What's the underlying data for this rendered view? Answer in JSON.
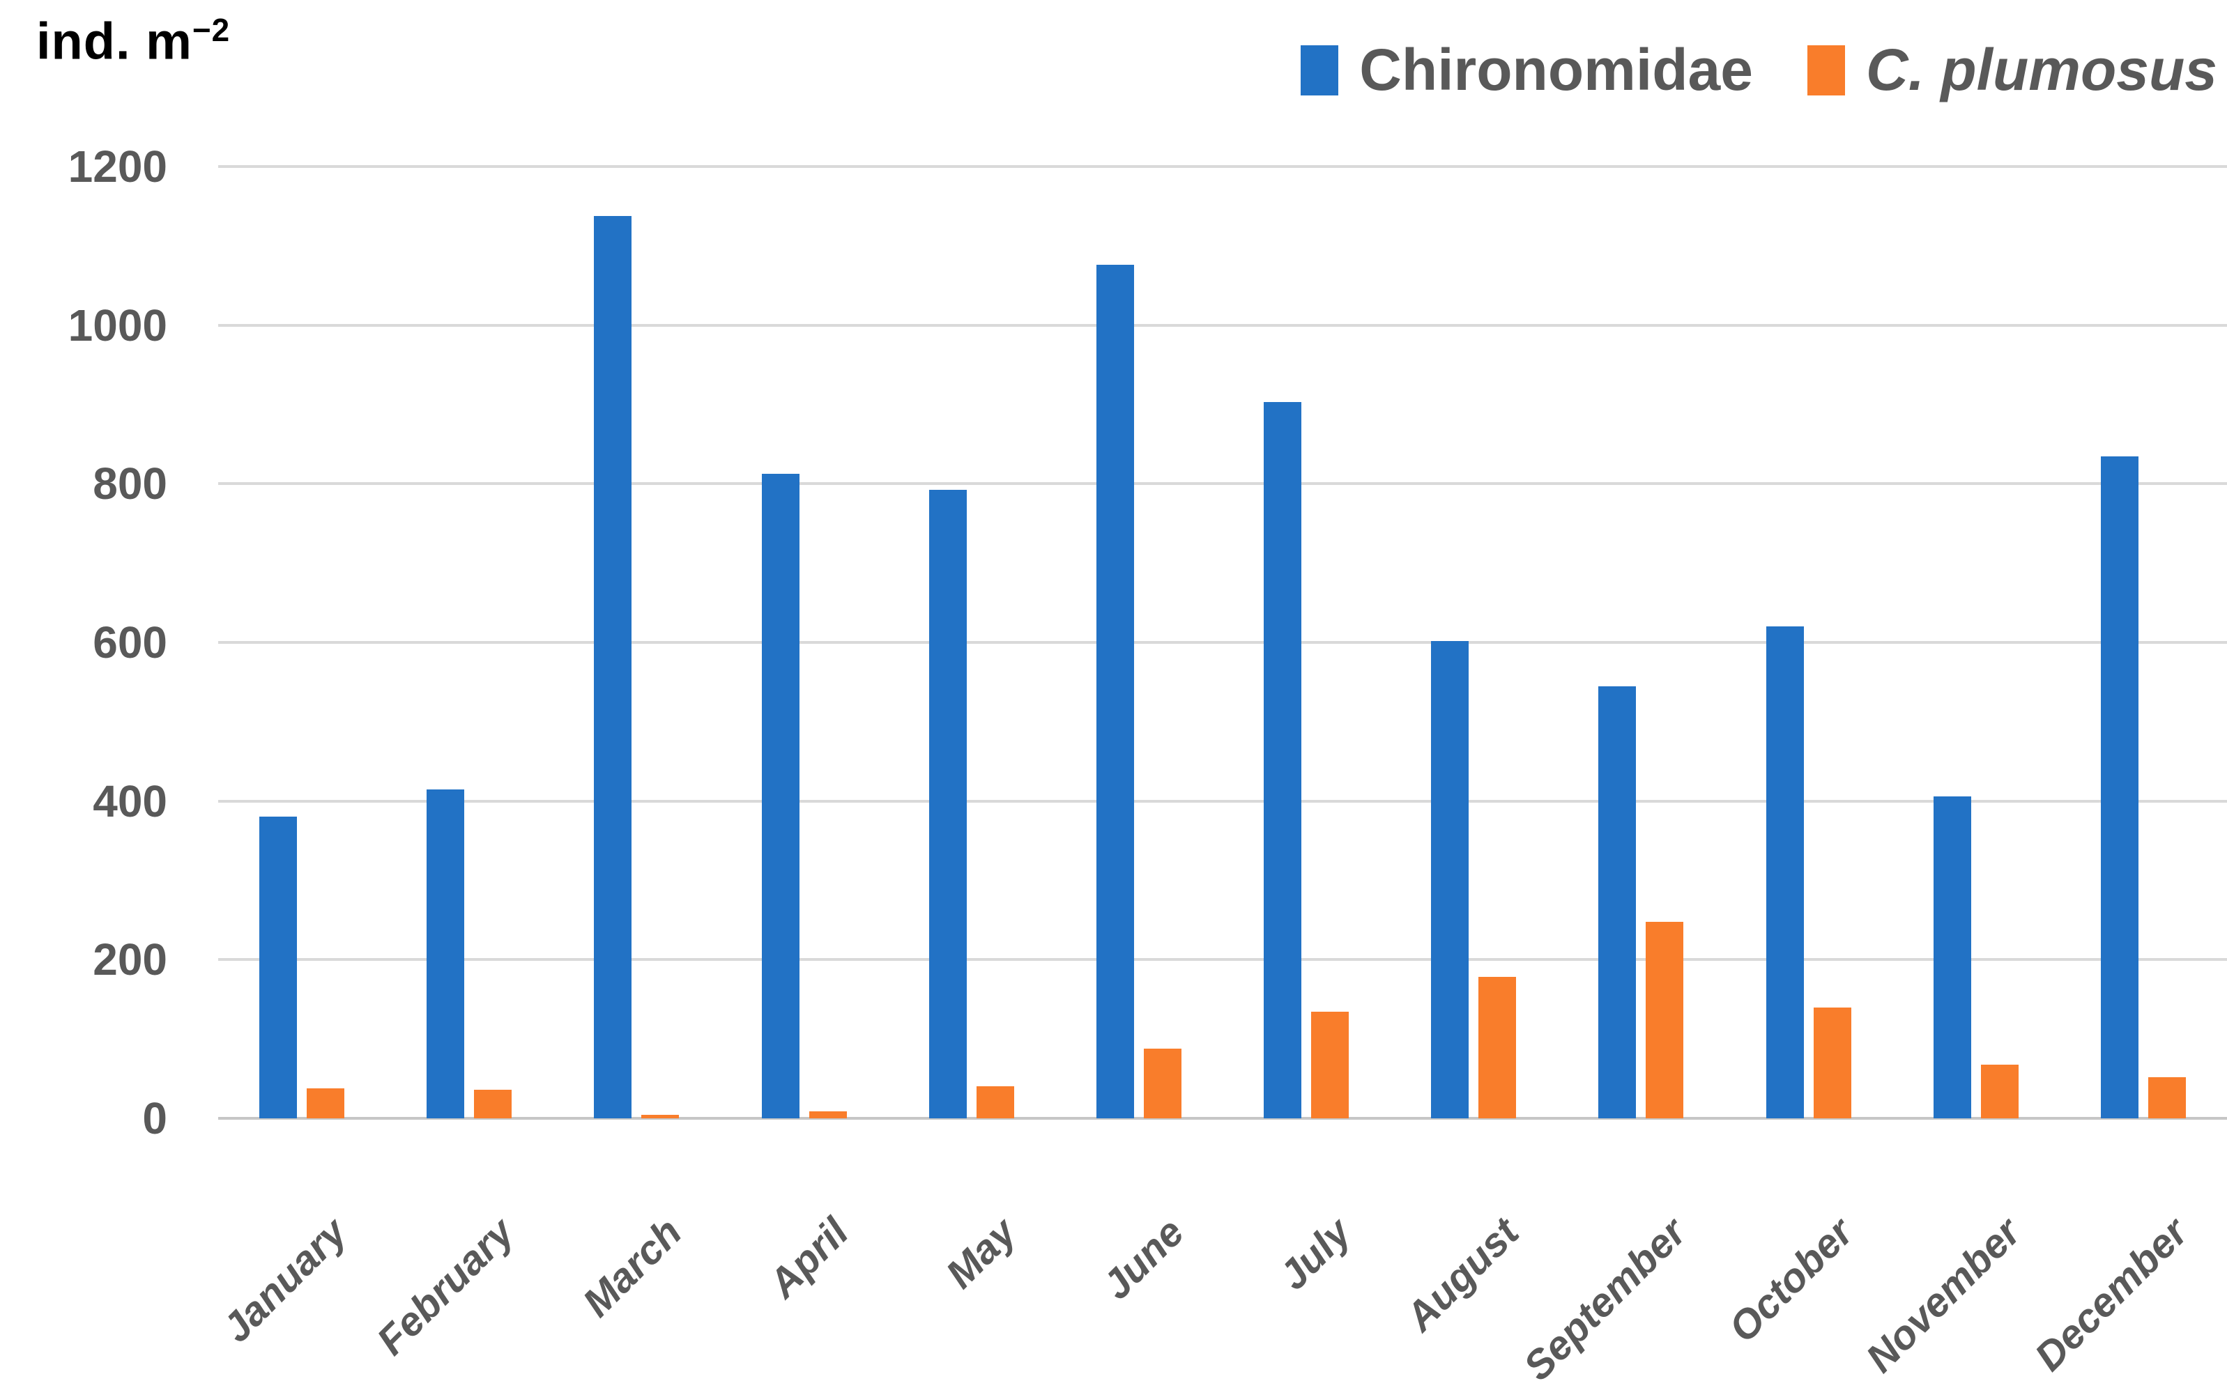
{
  "axis": {
    "y_title_base": "ind. m",
    "y_title_exp": "−2",
    "y_title_full": "ind. m⁻²"
  },
  "legend": [
    {
      "label": "Chironomidae",
      "color": "#2272C5",
      "italic": false
    },
    {
      "label": "C. plumosus",
      "color": "#F97D2B",
      "italic": true
    }
  ],
  "chart_data": {
    "type": "bar",
    "title": "",
    "xlabel": "",
    "ylabel": "ind. m⁻²",
    "ylim": [
      0,
      1200
    ],
    "yticks": [
      0,
      200,
      400,
      600,
      800,
      1000,
      1200
    ],
    "grid": true,
    "legend_position": "top-right",
    "categories": [
      "January",
      "February",
      "March",
      "April",
      "May",
      "June",
      "July",
      "August",
      "September",
      "October",
      "November",
      "December"
    ],
    "series": [
      {
        "name": "Chironomidae",
        "color": "#2272C5",
        "values": [
          380,
          415,
          1138,
          813,
          792,
          1076,
          903,
          602,
          545,
          620,
          406,
          835
        ]
      },
      {
        "name": "C. plumosus",
        "color": "#F97D2B",
        "values": [
          38,
          36,
          4,
          9,
          40,
          88,
          134,
          178,
          248,
          140,
          68,
          52
        ]
      }
    ],
    "text_color": "#595959",
    "gridline_color": "#D9D9D9",
    "axisline_color": "#C6C6C6"
  }
}
